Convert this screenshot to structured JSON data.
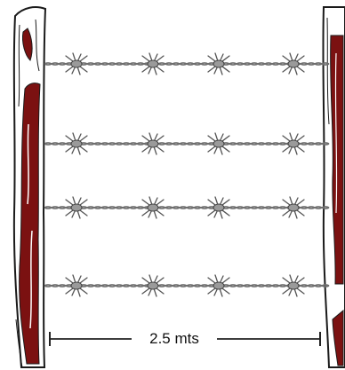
{
  "diagram": {
    "dimension_label": "2.5 mts",
    "colors": {
      "post_fill": "#7b1111",
      "post_outline": "#1a1a1a",
      "wire": "#6e6e6e",
      "barb": "#555555",
      "dimension_line": "#222222"
    }
  }
}
